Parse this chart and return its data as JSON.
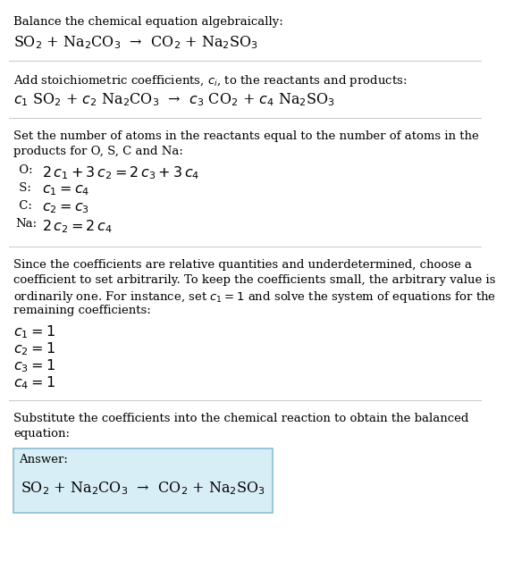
{
  "title": "Balance the chemical equation algebraically:",
  "equation_line": "SO$_2$ + Na$_2$CO$_3$  →  CO$_2$ + Na$_2$SO$_3$",
  "section2_intro": "Add stoichiometric coefficients, $c_i$, to the reactants and products:",
  "section2_eq": "$c_1$ SO$_2$ + $c_2$ Na$_2$CO$_3$  →  $c_3$ CO$_2$ + $c_4$ Na$_2$SO$_3$",
  "section3_intro_lines": [
    "Set the number of atoms in the reactants equal to the number of atoms in the",
    "products for O, S, C and Na:"
  ],
  "section3_lines_label": [
    " O:",
    " S:",
    " C:",
    "Na:"
  ],
  "section3_lines_eq": [
    "$2\\,c_1 + 3\\,c_2 = 2\\,c_3 + 3\\,c_4$",
    "$c_1 = c_4$",
    "$c_2 = c_3$",
    "$2\\,c_2 = 2\\,c_4$"
  ],
  "section4_intro_lines": [
    "Since the coefficients are relative quantities and underdetermined, choose a",
    "coefficient to set arbitrarily. To keep the coefficients small, the arbitrary value is",
    "ordinarily one. For instance, set $c_1 = 1$ and solve the system of equations for the",
    "remaining coefficients:"
  ],
  "section4_lines": [
    "$c_1 = 1$",
    "$c_2 = 1$",
    "$c_3 = 1$",
    "$c_4 = 1$"
  ],
  "section5_intro_lines": [
    "Substitute the coefficients into the chemical reaction to obtain the balanced",
    "equation:"
  ],
  "answer_label": "Answer:",
  "answer_eq": "SO$_2$ + Na$_2$CO$_3$  →  CO$_2$ + Na$_2$SO$_3$",
  "bg_color": "#ffffff",
  "text_color": "#000000",
  "box_facecolor": "#d8eef7",
  "box_edgecolor": "#8bbdd4",
  "hr_color": "#cccccc"
}
